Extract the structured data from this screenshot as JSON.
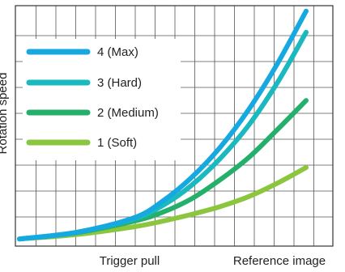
{
  "chart_data": {
    "type": "line",
    "xlabel": "Trigger pull",
    "ylabel": "Rotation speed",
    "caption": "Reference image",
    "grid": true,
    "legend_position": "top-left",
    "xlim": [
      0,
      10
    ],
    "ylim": [
      0,
      10
    ],
    "series": [
      {
        "name": "4 (Max)",
        "color": "#16a9e1",
        "points": [
          [
            0,
            0.1
          ],
          [
            2,
            0.4
          ],
          [
            4,
            1.05
          ],
          [
            5,
            1.8
          ],
          [
            6,
            2.85
          ],
          [
            7,
            4.2
          ],
          [
            8,
            5.9
          ],
          [
            9,
            7.95
          ],
          [
            10,
            10.3
          ]
        ]
      },
      {
        "name": "3 (Hard)",
        "color": "#19b9bf",
        "points": [
          [
            0,
            0.1
          ],
          [
            2,
            0.4
          ],
          [
            4,
            1.0
          ],
          [
            5,
            1.6
          ],
          [
            6,
            2.5
          ],
          [
            7,
            3.7
          ],
          [
            8,
            5.2
          ],
          [
            9,
            7.1
          ],
          [
            10,
            9.35
          ]
        ]
      },
      {
        "name": "2 (Medium)",
        "color": "#24b06b",
        "points": [
          [
            0,
            0.1
          ],
          [
            2,
            0.38
          ],
          [
            4,
            0.9
          ],
          [
            5,
            1.3
          ],
          [
            6,
            1.9
          ],
          [
            7,
            2.75
          ],
          [
            8,
            3.75
          ],
          [
            9,
            5.0
          ],
          [
            10,
            6.3
          ]
        ]
      },
      {
        "name": "1 (Soft)",
        "color": "#8cc63f",
        "points": [
          [
            0,
            0.1
          ],
          [
            2,
            0.3
          ],
          [
            4,
            0.65
          ],
          [
            5,
            0.9
          ],
          [
            6,
            1.2
          ],
          [
            7,
            1.55
          ],
          [
            8,
            2.0
          ],
          [
            9,
            2.6
          ],
          [
            10,
            3.3
          ]
        ]
      }
    ]
  }
}
